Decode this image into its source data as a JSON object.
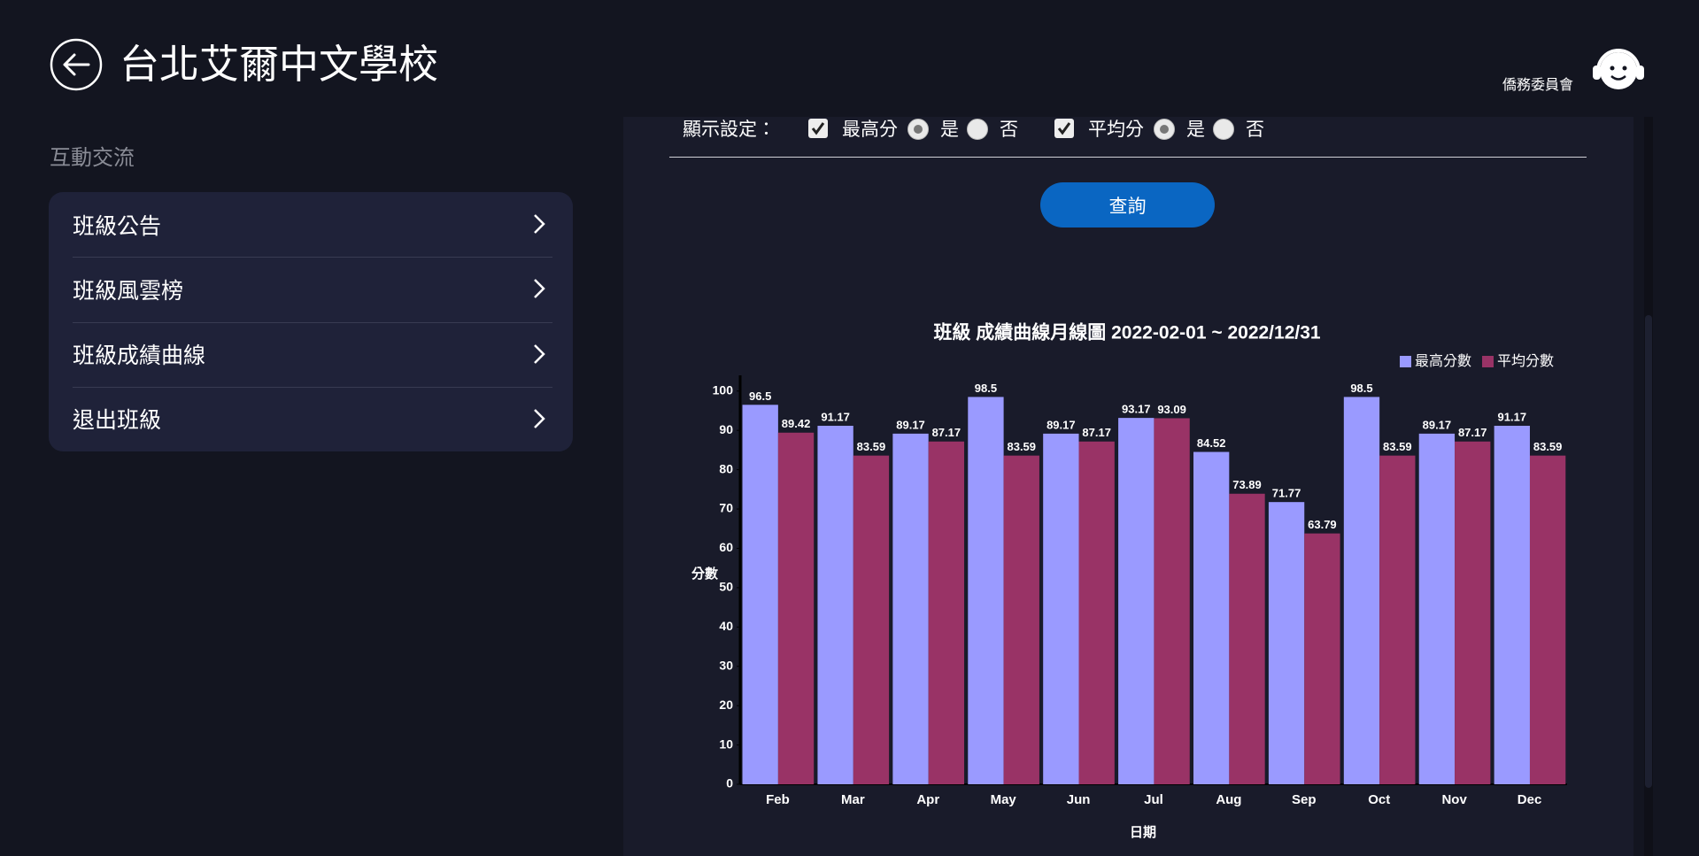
{
  "header": {
    "title": "台北艾爾中文學校",
    "logo_text": "僑務委員會"
  },
  "sidebar": {
    "section": "互動交流",
    "items": [
      "班級公告",
      "班級風雲榜",
      "班級成績曲線",
      "退出班級"
    ]
  },
  "settings": {
    "label": "顯示設定：",
    "options": [
      {
        "name": "最高分",
        "yes": "是",
        "no": "否"
      },
      {
        "name": "平均分",
        "yes": "是",
        "no": "否"
      }
    ]
  },
  "button": "查詢",
  "chart_data": {
    "type": "bar",
    "title": "班級 成績曲線月線圖 2022-02-01 ~ 2022/12/31",
    "x_label": "日期",
    "y_label": "分數",
    "categories": [
      "Feb",
      "Mar",
      "Apr",
      "May",
      "Jun",
      "Jul",
      "Aug",
      "Sep",
      "Oct",
      "Nov",
      "Dec"
    ],
    "series": [
      {
        "name": "最高分數",
        "color": "#9a9aff",
        "values": [
          96.5,
          91.17,
          89.17,
          98.5,
          89.17,
          93.17,
          84.52,
          71.77,
          98.5,
          89.17,
          91.17
        ]
      },
      {
        "name": "平均分數",
        "color": "#993366",
        "values": [
          89.42,
          83.59,
          87.17,
          83.59,
          87.17,
          93.09,
          73.89,
          63.79,
          83.59,
          87.17,
          83.59
        ]
      }
    ],
    "ylim": [
      0,
      104
    ],
    "yticks": [
      0,
      10,
      20,
      30,
      40,
      50,
      60,
      70,
      80,
      90,
      100
    ],
    "legend": "top-right",
    "data_labels": true
  }
}
